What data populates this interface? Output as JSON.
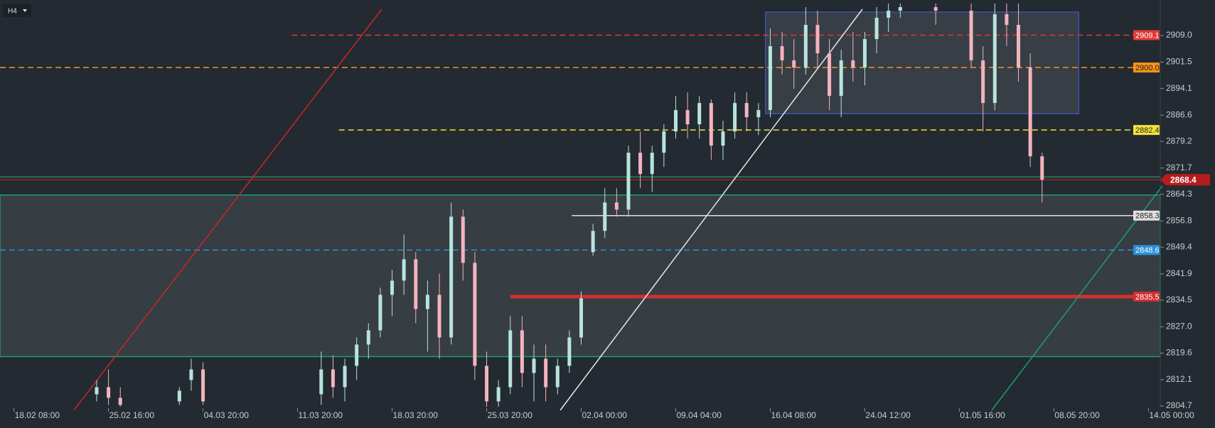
{
  "chart_data": {
    "type": "candlestick",
    "timeframe": "H4",
    "x": [
      7,
      8,
      9,
      14,
      15,
      16,
      26,
      27,
      28,
      29,
      30,
      31,
      32,
      33,
      34,
      35,
      36,
      37,
      38,
      39,
      40,
      41,
      42,
      43,
      44,
      45,
      46,
      47,
      48,
      49,
      50,
      51,
      52,
      53,
      54,
      55,
      56,
      57,
      58,
      59,
      60,
      61,
      62,
      63,
      64,
      65,
      66,
      67,
      68,
      69,
      70,
      71,
      72,
      73,
      74,
      75,
      78,
      81,
      82,
      83,
      84,
      85,
      86,
      87
    ],
    "open": [
      2808,
      2810,
      2807,
      2806,
      2812,
      2815,
      2808,
      2815,
      2810,
      2816,
      2822,
      2826,
      2836,
      2840,
      2846,
      2832,
      2836,
      2824,
      2858,
      2845,
      2816,
      2806,
      2810,
      2826,
      2814,
      2818,
      2810,
      2816,
      2824,
      2848,
      2854,
      2862,
      2860,
      2876,
      2870,
      2876,
      2882,
      2888,
      2884,
      2890,
      2878,
      2882,
      2890,
      2886,
      2888,
      2906,
      2902,
      2900,
      2912,
      2904,
      2892,
      2902,
      2900,
      2908,
      2914,
      2916,
      2917,
      2916,
      2902,
      2890,
      2915,
      2912,
      2900,
      2875
    ],
    "high": [
      2812,
      2815,
      2810,
      2810,
      2818,
      2817,
      2820,
      2819,
      2818,
      2824,
      2828,
      2838,
      2843,
      2853,
      2848,
      2840,
      2842,
      2862,
      2860,
      2848,
      2820,
      2812,
      2830,
      2830,
      2822,
      2822,
      2818,
      2826,
      2837,
      2856,
      2866,
      2866,
      2878,
      2882,
      2878,
      2884,
      2892,
      2893,
      2892,
      2891,
      2885,
      2893,
      2893,
      2890,
      2911,
      2910,
      2908,
      2917,
      2916,
      2908,
      2905,
      2910,
      2910,
      2917,
      2918,
      2918,
      2918,
      2918,
      2906,
      2918,
      2918,
      2918,
      2904,
      2876
    ],
    "low": [
      2806,
      2805,
      2804.5,
      2805,
      2809,
      2805,
      2805,
      2807,
      2806,
      2812,
      2818,
      2824,
      2830,
      2836,
      2828,
      2820,
      2818,
      2822,
      2840,
      2812,
      2804.5,
      2804.5,
      2808,
      2810,
      2806,
      2806,
      2808,
      2814,
      2822,
      2847,
      2852,
      2858,
      2858,
      2866,
      2865,
      2872,
      2880,
      2880,
      2880,
      2874,
      2874,
      2880,
      2882,
      2881,
      2886,
      2898,
      2894,
      2898,
      2900,
      2888,
      2886,
      2896,
      2895,
      2904,
      2910,
      2914,
      2912,
      2900,
      2882,
      2888,
      2906,
      2896,
      2872,
      2862
    ],
    "close": [
      2810,
      2807,
      2805,
      2809,
      2815,
      2806,
      2815,
      2810,
      2816,
      2822,
      2826,
      2836,
      2840,
      2846,
      2832,
      2836,
      2824,
      2858,
      2845,
      2816,
      2806,
      2810,
      2826,
      2814,
      2818,
      2810,
      2816,
      2824,
      2835,
      2854,
      2862,
      2860,
      2876,
      2870,
      2876,
      2882,
      2888,
      2884,
      2890,
      2878,
      2882,
      2890,
      2886,
      2888,
      2906,
      2902,
      2900,
      2912,
      2904,
      2892,
      2902,
      2900,
      2908,
      2914,
      2916,
      2917,
      2916,
      2902,
      2890,
      2915,
      2912,
      2900,
      2875,
      2868.4
    ],
    "up_color": "#b7e4dc",
    "down_color": "#f3b3bd",
    "xlim": [
      -1.18,
      97.0
    ],
    "xticks": [
      {
        "value": 0,
        "label": "18.02 08:00"
      },
      {
        "value": 8,
        "label": "25.02 16:00"
      },
      {
        "value": 16,
        "label": "04.03 20:00"
      },
      {
        "value": 24,
        "label": "11.03 20:00"
      },
      {
        "value": 32,
        "label": "18.03 20:00"
      },
      {
        "value": 40,
        "label": "25.03 20:00"
      },
      {
        "value": 48,
        "label": "02.04 00:00"
      },
      {
        "value": 56,
        "label": "09.04 04:00"
      },
      {
        "value": 64,
        "label": "16.04 08:00"
      },
      {
        "value": 72,
        "label": "24.04 12:00"
      },
      {
        "value": 80,
        "label": "01.05 16:00"
      },
      {
        "value": 88,
        "label": "08.05 20:00"
      },
      {
        "value": 96,
        "label": "14.05 00:00"
      }
    ],
    "ylim": [
      2804.1,
      2919.0
    ],
    "yticks": [
      {
        "value": 2909.0,
        "label": "2909.0"
      },
      2901.5,
      2894.1,
      2886.6,
      2879.2,
      2871.7,
      2864.3,
      2856.8,
      2849.4,
      2841.9,
      2834.5,
      {
        "value": 2827.0,
        "label": "2827.0"
      },
      2819.6,
      2812.1,
      2804.7
    ],
    "zones": [
      {
        "low": 2818.6,
        "high": 2864.1,
        "start": -1.18,
        "end": 97.0,
        "fill": "#3a4147",
        "stroke": "#1f9e6a"
      },
      {
        "low": 2887.0,
        "high": 2915.6,
        "start": 63.6,
        "end": 90.1,
        "fill": "#3b4249",
        "stroke": "#3f51b5"
      }
    ],
    "levels": [
      {
        "value": 2909.1,
        "label": "2909.1",
        "color": "#e53935",
        "text_color": "#ffffff",
        "style": "dashed",
        "width": 1.5,
        "start": 23.5
      },
      {
        "value": 2900.0,
        "label": "2900.0",
        "color": "#f7931a",
        "text_color": "#222222",
        "style": "dashed",
        "width": 1.5,
        "start": -1.18
      },
      {
        "value": 2882.4,
        "label": "2882.4",
        "color": "#f5e33b",
        "text_color": "#222222",
        "style": "dashed",
        "width": 1.5,
        "start": 27.5
      },
      {
        "value": 2858.3,
        "label": "2858.3",
        "color": "#e0e0e0",
        "text_color": "#222222",
        "style": "solid",
        "width": 1.5,
        "start": 47.2
      },
      {
        "value": 2848.6,
        "label": "2848.6",
        "color": "#2b8fd6",
        "text_color": "#ffffff",
        "style": "dashed",
        "width": 1.5,
        "start": -1.18
      },
      {
        "value": 2835.5,
        "label": "2835.5",
        "color": "#d32f2f",
        "text_color": "#ffffff",
        "style": "solid",
        "width": 5,
        "start": 42.0
      }
    ],
    "current_price": {
      "value": 2868.4,
      "label": "2868.4",
      "color": "#b71c1c"
    },
    "upper_line": {
      "value": 2869.2,
      "color": "#1f9e6a"
    }
  }
}
